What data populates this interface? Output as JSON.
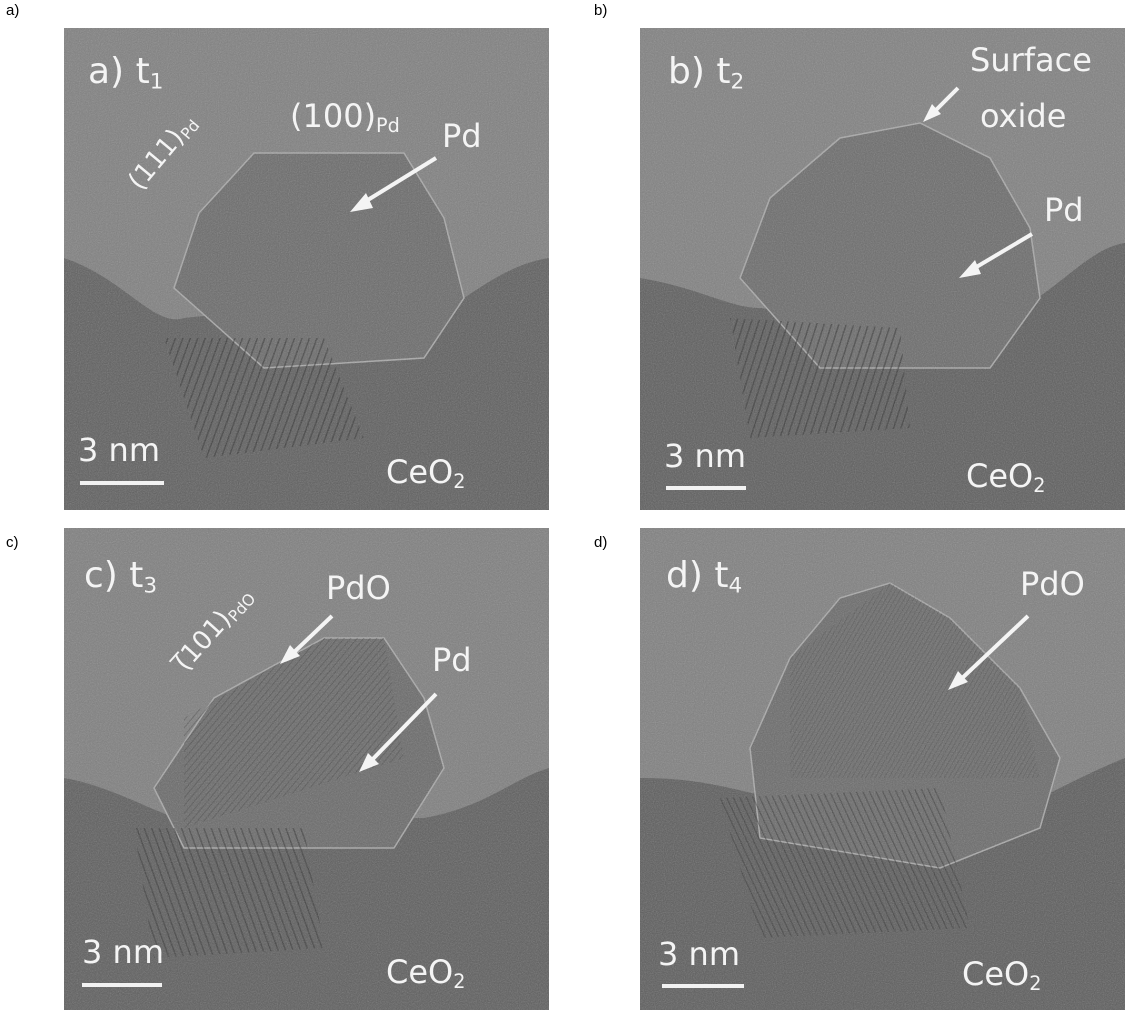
{
  "outer_labels": [
    "a)",
    "b)",
    "c)",
    "d)"
  ],
  "panels": [
    {
      "title_letter": "a)",
      "time_main": "t",
      "time_sub": "1",
      "plane1_main": "(111)",
      "plane1_sub": "Pd",
      "plane2_main": "(100)",
      "plane2_sub": "Pd",
      "label_arrow": "Pd",
      "scale": "3 nm",
      "substrate_main": "CeO",
      "substrate_sub": "2"
    },
    {
      "title_letter": "b)",
      "time_main": "t",
      "time_sub": "2",
      "oxide_line1": "Surface",
      "oxide_line2": "oxide",
      "label_arrow": "Pd",
      "scale": "3 nm",
      "substrate_main": "CeO",
      "substrate_sub": "2"
    },
    {
      "title_letter": "c)",
      "time_main": "t",
      "time_sub": "3",
      "plane_main": "(̅101)",
      "plane_sub": "PdO",
      "label_pdo": "PdO",
      "label_arrow": "Pd",
      "scale": "3 nm",
      "substrate_main": "CeO",
      "substrate_sub": "2"
    },
    {
      "title_letter": "d)",
      "time_main": "t",
      "time_sub": "4",
      "label_pdo": "PdO",
      "scale": "3 nm",
      "substrate_main": "CeO",
      "substrate_sub": "2"
    }
  ]
}
